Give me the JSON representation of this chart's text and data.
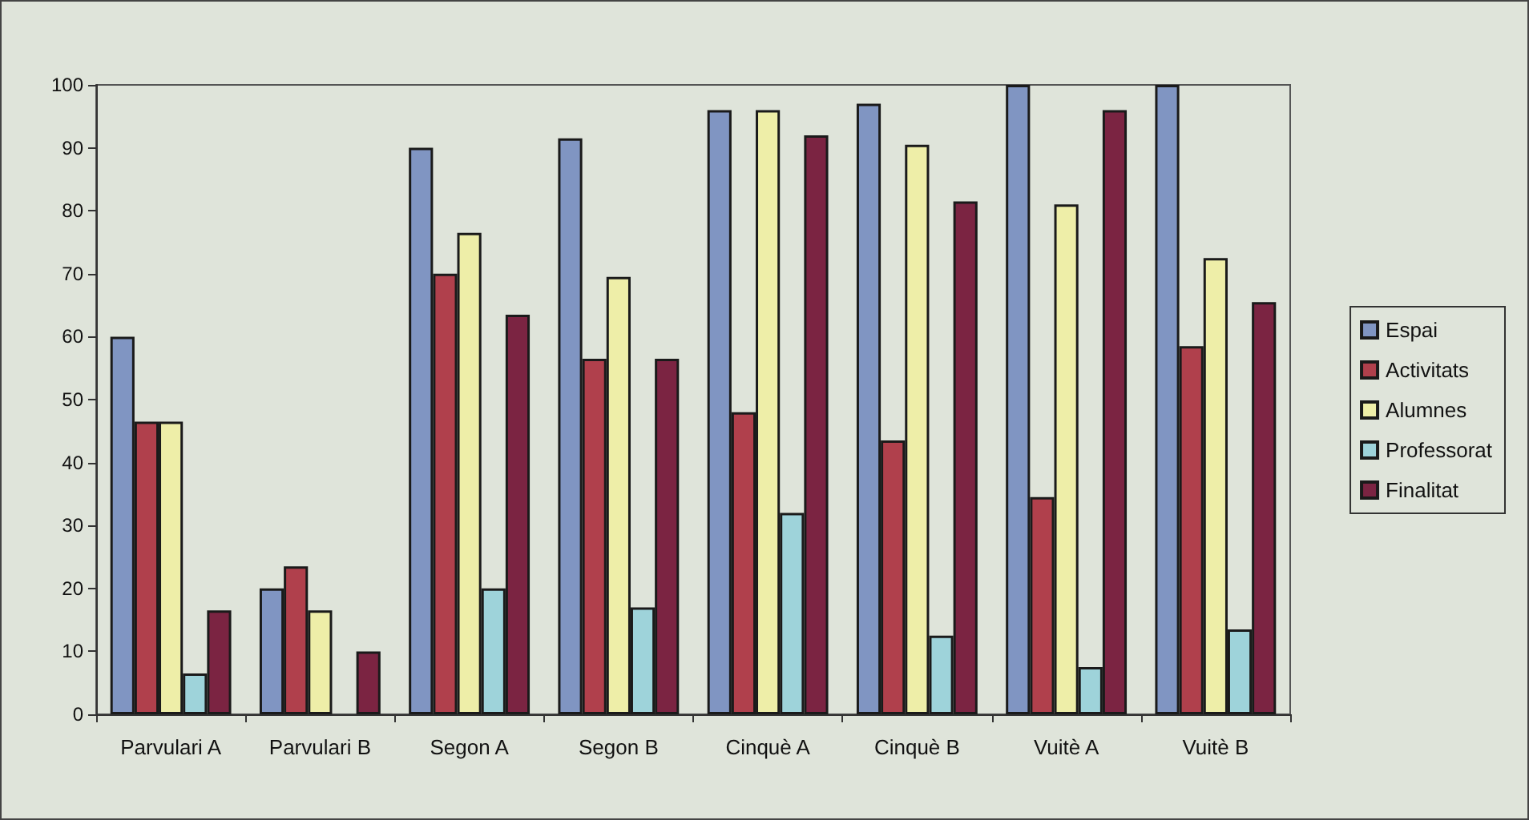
{
  "chart_data": {
    "type": "bar",
    "categories": [
      "Parvulari A",
      "Parvulari B",
      "Segon A",
      "Segon B",
      "Cinquè A",
      "Cinquè B",
      "Vuitè A",
      "Vuitè B"
    ],
    "series": [
      {
        "name": "Espai",
        "color": "#8095c2",
        "values": [
          60,
          20,
          90,
          91.5,
          96,
          97,
          100,
          100
        ]
      },
      {
        "name": "Activitats",
        "color": "#b0404c",
        "values": [
          46.5,
          23.5,
          70,
          56.5,
          48,
          43.5,
          34.5,
          58.5
        ]
      },
      {
        "name": "Alumnes",
        "color": "#eeeea8",
        "values": [
          46.5,
          16.5,
          76.5,
          69.5,
          96,
          90.5,
          81,
          72.5
        ]
      },
      {
        "name": "Professorat",
        "color": "#9ed3da",
        "values": [
          6.5,
          null,
          20,
          17,
          32,
          12.5,
          7.5,
          13.5
        ]
      },
      {
        "name": "Finalitat",
        "color": "#7b2442",
        "values": [
          16.5,
          10,
          63.5,
          56.5,
          92,
          81.5,
          96,
          65.5
        ]
      }
    ],
    "ylim": [
      0,
      100
    ],
    "yticks": [
      0,
      10,
      20,
      30,
      40,
      50,
      60,
      70,
      80,
      90,
      100
    ],
    "grid": false,
    "legend": "right"
  }
}
